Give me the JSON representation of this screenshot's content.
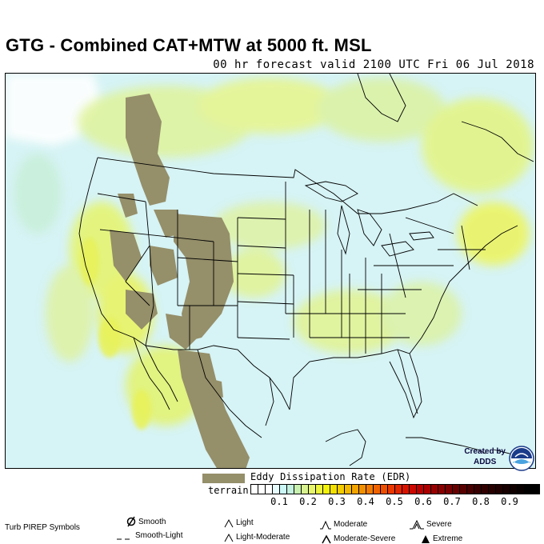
{
  "title": "GTG - Combined CAT+MTW at 5000 ft. MSL",
  "subtitle": "00 hr forecast valid 2100 UTC Fri 06 Jul 2018",
  "legend": {
    "terrain_label": "terrain",
    "scale_title": "Eddy Dissipation Rate (EDR)",
    "ticks": [
      "0.1",
      "0.2",
      "0.3",
      "0.4",
      "0.5",
      "0.6",
      "0.7",
      "0.8",
      "0.9"
    ],
    "colors": [
      "#ffffff",
      "#ffffff",
      "#ffffff",
      "#e6fbfb",
      "#ccf7f7",
      "#c4f0e0",
      "#c8f1b0",
      "#d8f290",
      "#e6f56a",
      "#ecf43c",
      "#f2f20a",
      "#f2e000",
      "#f2cc00",
      "#f2b800",
      "#f2a400",
      "#f29000",
      "#f27a00",
      "#f06400",
      "#ee4e00",
      "#ea3800",
      "#e22600",
      "#d81400",
      "#cc0800",
      "#bc0000",
      "#aa0000",
      "#980000",
      "#880000",
      "#780000",
      "#680000",
      "#580000",
      "#480000",
      "#380000",
      "#300000",
      "#280000",
      "#200000",
      "#180000",
      "#100000",
      "#080000",
      "#000000",
      "#000000"
    ]
  },
  "pirep": {
    "heading": "Turb PIREP Symbols",
    "smooth": "Smooth",
    "smooth_light": "Smooth-Light",
    "light": "Light",
    "light_moderate": "Light-Moderate",
    "moderate": "Moderate",
    "moderate_severe": "Moderate-Severe",
    "severe": "Severe",
    "extreme": "Extreme"
  },
  "logo": {
    "line1": "Created by",
    "line2": "ADDS"
  }
}
